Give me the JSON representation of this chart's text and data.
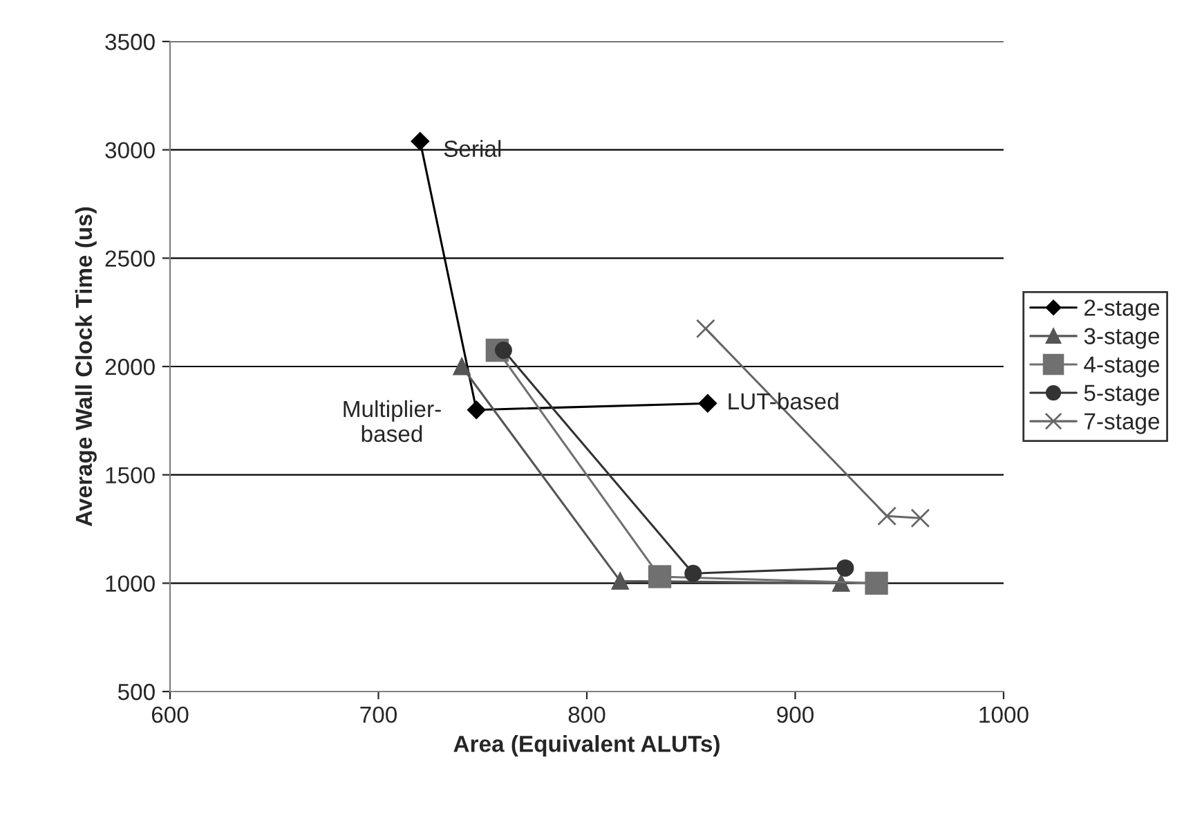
{
  "chart_data": {
    "type": "line",
    "xlabel": "Area (Equivalent ALUTs)",
    "ylabel": "Average Wall Clock Time (us)",
    "xlim": [
      600,
      1000
    ],
    "xticks": [
      600,
      700,
      800,
      900,
      1000
    ],
    "ylim": [
      500,
      3500
    ],
    "yticks": [
      500,
      1000,
      1500,
      2000,
      2500,
      3000,
      3500
    ],
    "grid": "y",
    "legend": "right",
    "series": [
      {
        "name": "2-stage",
        "color": "#000000",
        "marker": "diamond",
        "x": [
          720,
          747,
          858
        ],
        "values": [
          3040,
          1800,
          1830
        ]
      },
      {
        "name": "3-stage",
        "color": "#555555",
        "marker": "triangle",
        "x": [
          740,
          816,
          922
        ],
        "values": [
          2000,
          1010,
          1000
        ]
      },
      {
        "name": "4-stage",
        "color": "#707070",
        "marker": "square",
        "x": [
          757,
          835,
          939
        ],
        "values": [
          2075,
          1030,
          1000
        ]
      },
      {
        "name": "5-stage",
        "color": "#333333",
        "marker": "circle",
        "x": [
          760,
          851,
          924
        ],
        "values": [
          2075,
          1045,
          1070
        ]
      },
      {
        "name": "7-stage",
        "color": "#666666",
        "marker": "cross",
        "x": [
          857,
          944,
          960
        ],
        "values": [
          2175,
          1310,
          1300
        ]
      }
    ],
    "annotations": [
      {
        "text": "Serial",
        "x": 720,
        "y": 3040
      },
      {
        "text": "Multiplier-\nbased",
        "x": 747,
        "y": 1800
      },
      {
        "text": "LUT-based",
        "x": 858,
        "y": 1830
      }
    ]
  }
}
